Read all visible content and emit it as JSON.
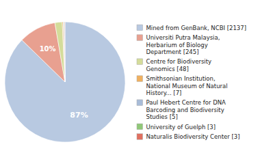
{
  "chart_data": {
    "type": "pie",
    "categories": [
      "Mined from GenBank, NCBI [2137]",
      "Universiti Putra Malaysia,\nHerbarium of Biology\nDepartment [245]",
      "Centre for Biodiversity\nGenomics [48]",
      "Smithsonian Institution,\nNational Museum of Natural\nHistory... [7]",
      "Paul Hebert Centre for DNA\nBarcoding and Biodiversity\nStudies [5]",
      "University of Guelph [3]",
      "Naturalis Biodiversity Center [3]"
    ],
    "values": [
      87.296,
      10.008,
      1.961,
      0.286,
      0.204,
      0.123,
      0.123
    ],
    "value_labels": [
      "87%",
      "10%",
      null,
      null,
      null,
      null,
      null
    ],
    "colors": [
      "#b8c9e1",
      "#e8a090",
      "#d4dc9a",
      "#f0b060",
      "#a8bcd8",
      "#90c878",
      "#e07060"
    ],
    "legend": "right"
  }
}
